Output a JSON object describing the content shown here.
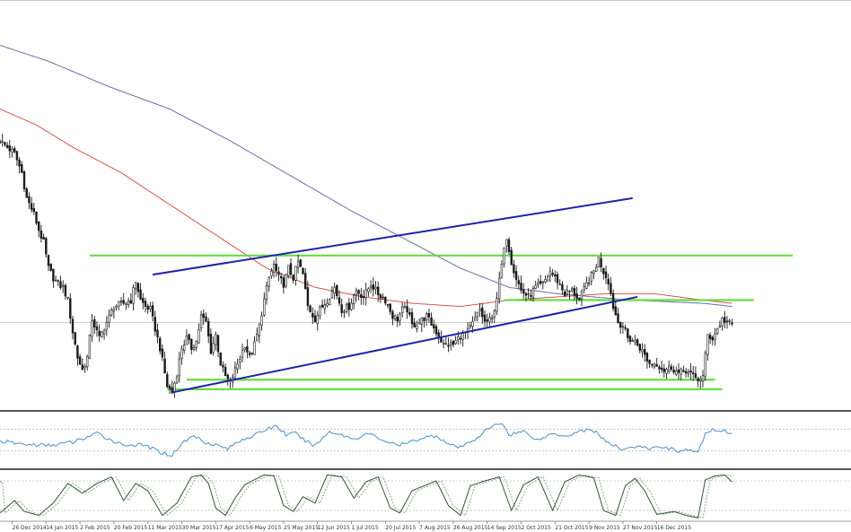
{
  "colors": {
    "background": "#ffffff",
    "candle": "#1a1a1a",
    "sma_fast": "#d9534f",
    "sma_slow": "#6b6fa8",
    "trend_channel": "#1f22a8",
    "horizontal_levels": "#66dd44",
    "current_level": "#cccccc",
    "rsi": "#4a90c8",
    "stoch_k": "#2d5a2d",
    "stoch_d": "#8aa88a",
    "panel_separator": "#555555"
  },
  "chart_data": [
    {
      "type": "candlestick",
      "panel": "price",
      "x_tick_labels": [
        "26 Dec 2014",
        "14 Jan 2015",
        "2 Feb 2015",
        "20 Feb 2015",
        "11 Mar 2015",
        "30 Mar 2015",
        "17 Apr 2015",
        "6 May 2015",
        "25 May 2015",
        "12 Jun 2015",
        "1 Jul 2015",
        "20 Jul 2015",
        "7 Aug 2015",
        "26 Aug 2015",
        "14 Sep 2015",
        "2 Oct 2015",
        "21 Oct 2015",
        "9 Nov 2015",
        "27 Nov 2015",
        "16 Dec 2015"
      ],
      "x_first_tick_index": 5,
      "bars_per_tick": 14,
      "price_scale": [
        0,
        100
      ],
      "price_anchors": [
        [
          0,
          80
        ],
        [
          3,
          78
        ],
        [
          6,
          76
        ],
        [
          9,
          70
        ],
        [
          11,
          62
        ],
        [
          14,
          57
        ],
        [
          16,
          52
        ],
        [
          18,
          48
        ],
        [
          20,
          40
        ],
        [
          22,
          37
        ],
        [
          24,
          35
        ],
        [
          26,
          34
        ],
        [
          28,
          30
        ],
        [
          30,
          20
        ],
        [
          32,
          12
        ],
        [
          34,
          8
        ],
        [
          36,
          12
        ],
        [
          38,
          24
        ],
        [
          41,
          18
        ],
        [
          44,
          23
        ],
        [
          47,
          28
        ],
        [
          51,
          29
        ],
        [
          54,
          30
        ],
        [
          56,
          36
        ],
        [
          58,
          30
        ],
        [
          60,
          28
        ],
        [
          62,
          27
        ],
        [
          66,
          15
        ],
        [
          69,
          3
        ],
        [
          71,
          1
        ],
        [
          73,
          7
        ],
        [
          75,
          15
        ],
        [
          77,
          18
        ],
        [
          79,
          15
        ],
        [
          81,
          17
        ],
        [
          83,
          25
        ],
        [
          85,
          23
        ],
        [
          87,
          14
        ],
        [
          89,
          19
        ],
        [
          91,
          10
        ],
        [
          93,
          6
        ],
        [
          95,
          4
        ],
        [
          97,
          8
        ],
        [
          99,
          12
        ],
        [
          101,
          16
        ],
        [
          103,
          12
        ],
        [
          105,
          16
        ],
        [
          107,
          22
        ],
        [
          109,
          30
        ],
        [
          111,
          37
        ],
        [
          113,
          41
        ],
        [
          115,
          37
        ],
        [
          117,
          35
        ],
        [
          119,
          40
        ],
        [
          121,
          37
        ],
        [
          123,
          42
        ],
        [
          125,
          38
        ],
        [
          127,
          28
        ],
        [
          130,
          24
        ],
        [
          132,
          27
        ],
        [
          135,
          30
        ],
        [
          138,
          34
        ],
        [
          141,
          27
        ],
        [
          144,
          28
        ],
        [
          147,
          33
        ],
        [
          150,
          31
        ],
        [
          153,
          35
        ],
        [
          156,
          32
        ],
        [
          159,
          30
        ],
        [
          162,
          25
        ],
        [
          164,
          24
        ],
        [
          166,
          27
        ],
        [
          168,
          27
        ],
        [
          170,
          22
        ],
        [
          173,
          23
        ],
        [
          176,
          25
        ],
        [
          180,
          20
        ],
        [
          183,
          16
        ],
        [
          187,
          16
        ],
        [
          190,
          19
        ],
        [
          193,
          20
        ],
        [
          196,
          24
        ],
        [
          198,
          27
        ],
        [
          200,
          23
        ],
        [
          203,
          24
        ],
        [
          205,
          31
        ],
        [
          207,
          41
        ],
        [
          209,
          50
        ],
        [
          211,
          42
        ],
        [
          213,
          37
        ],
        [
          215,
          33
        ],
        [
          218,
          31
        ],
        [
          221,
          34
        ],
        [
          224,
          35
        ],
        [
          227,
          39
        ],
        [
          230,
          36
        ],
        [
          233,
          32
        ],
        [
          236,
          33
        ],
        [
          239,
          30
        ],
        [
          242,
          35
        ],
        [
          245,
          39
        ],
        [
          247,
          43
        ],
        [
          249,
          39
        ],
        [
          251,
          36
        ],
        [
          253,
          28
        ],
        [
          255,
          23
        ],
        [
          257,
          22
        ],
        [
          259,
          18
        ],
        [
          262,
          17
        ],
        [
          265,
          14
        ],
        [
          268,
          10
        ],
        [
          271,
          10
        ],
        [
          274,
          8
        ],
        [
          277,
          9
        ],
        [
          280,
          7
        ],
        [
          283,
          8
        ],
        [
          286,
          6
        ],
        [
          288,
          5
        ],
        [
          290,
          6
        ],
        [
          292,
          19
        ],
        [
          294,
          18
        ],
        [
          296,
          21
        ],
        [
          298,
          24
        ],
        [
          300,
          23
        ],
        [
          302,
          22
        ]
      ],
      "lines": [
        {
          "kind": "trend",
          "from": {
            "bar": 71,
            "price": 1
          },
          "to": {
            "bar": 263,
            "price": 31
          }
        },
        {
          "kind": "trend",
          "from": {
            "bar": 63,
            "price": 38
          },
          "to": {
            "bar": 261,
            "price": 62
          }
        },
        {
          "kind": "horizontal",
          "price": 44,
          "from_bar": 37,
          "to_bar": 327
        },
        {
          "kind": "horizontal",
          "price": 30,
          "from_bar": 208,
          "to_bar": 311
        },
        {
          "kind": "horizontal",
          "price": 5,
          "from_bar": 77,
          "to_bar": 295
        },
        {
          "kind": "horizontal",
          "price": 2,
          "from_bar": 69,
          "to_bar": 298
        },
        {
          "kind": "current",
          "price": 23
        }
      ],
      "moving_averages": [
        {
          "role": "fast",
          "anchors": [
            [
              0,
              90
            ],
            [
              15,
              85
            ],
            [
              30,
              78
            ],
            [
              50,
              70
            ],
            [
              70,
              60
            ],
            [
              90,
              50
            ],
            [
              110,
              40
            ],
            [
              130,
              34
            ],
            [
              150,
              31
            ],
            [
              170,
              29
            ],
            [
              190,
              28
            ],
            [
              210,
              30
            ],
            [
              230,
              31
            ],
            [
              250,
              32
            ],
            [
              270,
              32
            ],
            [
              290,
              30
            ],
            [
              302,
              29
            ]
          ]
        },
        {
          "role": "slow",
          "anchors": [
            [
              0,
              110
            ],
            [
              20,
              105
            ],
            [
              45,
              97
            ],
            [
              70,
              90
            ],
            [
              95,
              80
            ],
            [
              120,
              69
            ],
            [
              145,
              58
            ],
            [
              170,
              48
            ],
            [
              190,
              40
            ],
            [
              210,
              34
            ],
            [
              230,
              32
            ],
            [
              260,
              30
            ],
            [
              290,
              29
            ],
            [
              302,
              28
            ]
          ]
        }
      ]
    },
    {
      "type": "line",
      "panel": "rsi",
      "y_range": [
        0,
        100
      ],
      "levels": [
        70,
        30
      ],
      "anchors": [
        [
          0,
          48
        ],
        [
          10,
          42
        ],
        [
          20,
          40
        ],
        [
          30,
          46
        ],
        [
          40,
          62
        ],
        [
          50,
          42
        ],
        [
          60,
          40
        ],
        [
          66,
          28
        ],
        [
          71,
          22
        ],
        [
          75,
          44
        ],
        [
          80,
          58
        ],
        [
          85,
          46
        ],
        [
          90,
          40
        ],
        [
          94,
          34
        ],
        [
          100,
          52
        ],
        [
          105,
          58
        ],
        [
          110,
          70
        ],
        [
          114,
          76
        ],
        [
          118,
          60
        ],
        [
          122,
          62
        ],
        [
          126,
          48
        ],
        [
          130,
          40
        ],
        [
          136,
          66
        ],
        [
          142,
          58
        ],
        [
          146,
          52
        ],
        [
          152,
          62
        ],
        [
          158,
          50
        ],
        [
          164,
          40
        ],
        [
          168,
          44
        ],
        [
          174,
          54
        ],
        [
          180,
          58
        ],
        [
          186,
          40
        ],
        [
          190,
          36
        ],
        [
          196,
          52
        ],
        [
          202,
          72
        ],
        [
          207,
          82
        ],
        [
          210,
          60
        ],
        [
          216,
          66
        ],
        [
          222,
          50
        ],
        [
          228,
          62
        ],
        [
          234,
          58
        ],
        [
          240,
          68
        ],
        [
          246,
          66
        ],
        [
          250,
          46
        ],
        [
          256,
          34
        ],
        [
          262,
          38
        ],
        [
          268,
          34
        ],
        [
          274,
          38
        ],
        [
          280,
          30
        ],
        [
          284,
          32
        ],
        [
          288,
          26
        ],
        [
          291,
          62
        ],
        [
          295,
          70
        ],
        [
          299,
          66
        ],
        [
          302,
          62
        ]
      ]
    },
    {
      "type": "line",
      "panel": "stochastic",
      "y_range": [
        0,
        100
      ],
      "levels": [
        80,
        20
      ],
      "k_anchors": [
        [
          0,
          15
        ],
        [
          6,
          40
        ],
        [
          10,
          18
        ],
        [
          16,
          10
        ],
        [
          22,
          35
        ],
        [
          28,
          75
        ],
        [
          34,
          55
        ],
        [
          40,
          75
        ],
        [
          46,
          88
        ],
        [
          51,
          40
        ],
        [
          56,
          75
        ],
        [
          61,
          60
        ],
        [
          67,
          10
        ],
        [
          73,
          35
        ],
        [
          79,
          88
        ],
        [
          83,
          92
        ],
        [
          86,
          75
        ],
        [
          89,
          25
        ],
        [
          93,
          10
        ],
        [
          97,
          45
        ],
        [
          101,
          72
        ],
        [
          106,
          85
        ],
        [
          109,
          92
        ],
        [
          113,
          90
        ],
        [
          117,
          30
        ],
        [
          121,
          18
        ],
        [
          125,
          48
        ],
        [
          130,
          35
        ],
        [
          135,
          92
        ],
        [
          141,
          88
        ],
        [
          146,
          45
        ],
        [
          151,
          78
        ],
        [
          156,
          88
        ],
        [
          161,
          25
        ],
        [
          165,
          15
        ],
        [
          170,
          60
        ],
        [
          175,
          70
        ],
        [
          180,
          80
        ],
        [
          185,
          30
        ],
        [
          190,
          10
        ],
        [
          194,
          70
        ],
        [
          200,
          80
        ],
        [
          206,
          88
        ],
        [
          211,
          20
        ],
        [
          216,
          72
        ],
        [
          222,
          88
        ],
        [
          228,
          20
        ],
        [
          233,
          78
        ],
        [
          239,
          92
        ],
        [
          245,
          86
        ],
        [
          249,
          20
        ],
        [
          254,
          10
        ],
        [
          258,
          70
        ],
        [
          262,
          85
        ],
        [
          266,
          60
        ],
        [
          271,
          12
        ],
        [
          278,
          18
        ],
        [
          283,
          10
        ],
        [
          288,
          5
        ],
        [
          291,
          82
        ],
        [
          295,
          90
        ],
        [
          299,
          92
        ],
        [
          302,
          78
        ]
      ],
      "d_offset_bars": 2
    }
  ]
}
